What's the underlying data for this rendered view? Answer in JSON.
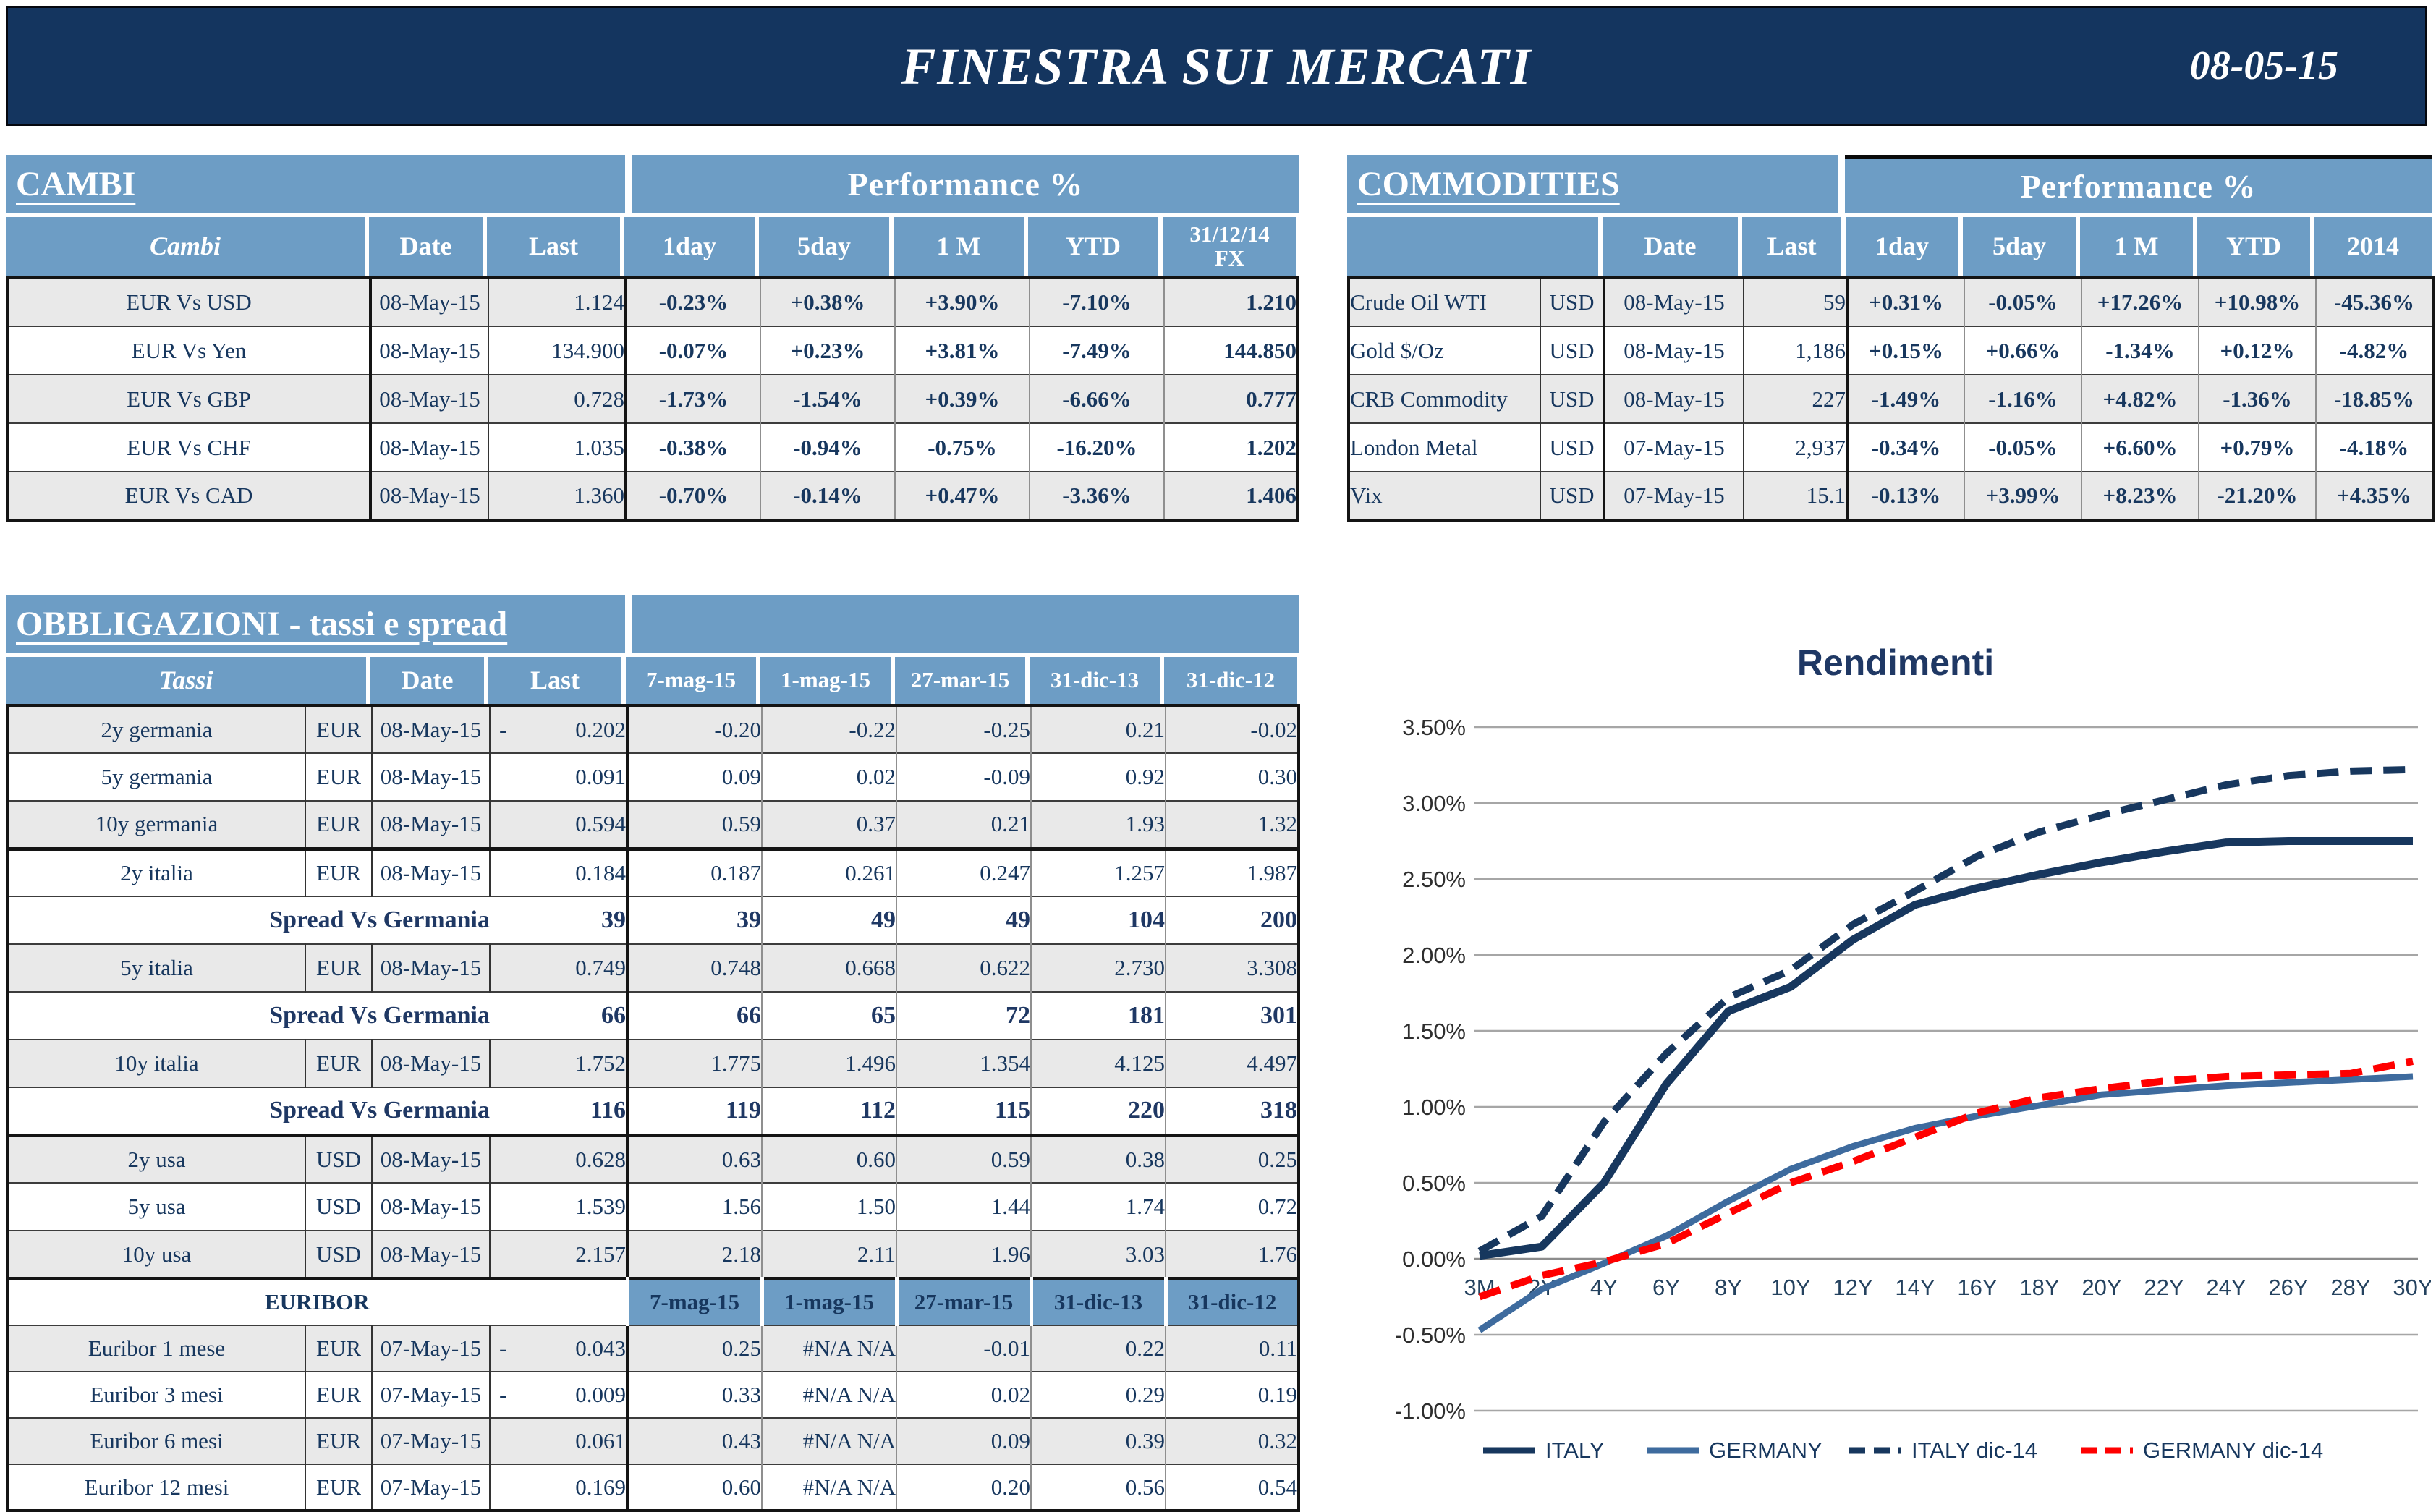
{
  "header": {
    "title": "FINESTRA SUI MERCATI",
    "date": "08-05-15"
  },
  "palette": {
    "banner_navy": "#14355F",
    "header_blue": "#6D9DC5",
    "row_gray": "#E9E9E9",
    "text_navy": "#17375E",
    "positive_green": "#00A14E",
    "negative_red": "#E60000",
    "italy_line": "#17375E",
    "germany_line": "#3E6B9E",
    "germany_dic14_line": "#FF0000",
    "grid_gray": "#A6A6A6"
  },
  "cambi": {
    "title": "CAMBI",
    "perf_title": "Performance  %",
    "col_headers": [
      "Cambi",
      "Date",
      "Last",
      "1day",
      "5day",
      "1 M",
      "YTD",
      "31/12/14\nFX"
    ],
    "rows": [
      {
        "name": "EUR Vs USD",
        "date": "08-May-15",
        "last": "1.124",
        "perf": [
          "-0.23%",
          "+0.38%",
          "+3.90%",
          "-7.10%"
        ],
        "fx": "1.210"
      },
      {
        "name": "EUR Vs Yen",
        "date": "08-May-15",
        "last": "134.900",
        "perf": [
          "-0.07%",
          "+0.23%",
          "+3.81%",
          "-7.49%"
        ],
        "fx": "144.850"
      },
      {
        "name": "EUR Vs GBP",
        "date": "08-May-15",
        "last": "0.728",
        "perf": [
          "-1.73%",
          "-1.54%",
          "+0.39%",
          "-6.66%"
        ],
        "fx": "0.777"
      },
      {
        "name": "EUR Vs CHF",
        "date": "08-May-15",
        "last": "1.035",
        "perf": [
          "-0.38%",
          "-0.94%",
          "-0.75%",
          "-16.20%"
        ],
        "fx": "1.202"
      },
      {
        "name": "EUR Vs CAD",
        "date": "08-May-15",
        "last": "1.360",
        "perf": [
          "-0.70%",
          "-0.14%",
          "+0.47%",
          "-3.36%"
        ],
        "fx": "1.406"
      }
    ]
  },
  "commodities": {
    "title": "COMMODITIES",
    "perf_title": "Performance  %",
    "col_headers": [
      "",
      "Date",
      "Last",
      "1day",
      "5day",
      "1 M",
      "YTD",
      "2014"
    ],
    "rows": [
      {
        "name": "Crude Oil WTI",
        "ccy": "USD",
        "date": "08-May-15",
        "last": "59",
        "perf": [
          "+0.31%",
          "-0.05%",
          "+17.26%",
          "+10.98%",
          "-45.36%"
        ]
      },
      {
        "name": "Gold $/Oz",
        "ccy": "USD",
        "date": "08-May-15",
        "last": "1,186",
        "perf": [
          "+0.15%",
          "+0.66%",
          "-1.34%",
          "+0.12%",
          "-4.82%"
        ]
      },
      {
        "name": "CRB Commodity",
        "ccy": "USD",
        "date": "08-May-15",
        "last": "227",
        "perf": [
          "-1.49%",
          "-1.16%",
          "+4.82%",
          "-1.36%",
          "-18.85%"
        ]
      },
      {
        "name": "London Metal",
        "ccy": "USD",
        "date": "07-May-15",
        "last": "2,937",
        "perf": [
          "-0.34%",
          "-0.05%",
          "+6.60%",
          "+0.79%",
          "-4.18%"
        ]
      },
      {
        "name": "Vix",
        "ccy": "USD",
        "date": "07-May-15",
        "last": "15.1",
        "perf": [
          "-0.13%",
          "+3.99%",
          "+8.23%",
          "-21.20%",
          "+4.35%"
        ]
      }
    ]
  },
  "obbligazioni": {
    "title": "OBBLIGAZIONI - tassi e spread",
    "col_headers": [
      "Tassi",
      "Date",
      "Last"
    ],
    "history_columns": [
      "7-mag-15",
      "1-mag-15",
      "27-mar-15",
      "31-dic-13",
      "31-dic-12"
    ],
    "rows": [
      {
        "type": "data",
        "name": "2y germania",
        "ccy": "EUR",
        "date": "08-May-15",
        "dash": "-",
        "last": "0.202",
        "values": [
          "-0.20",
          "-0.22",
          "-0.25",
          "0.21",
          "-0.02"
        ],
        "bg": "gray"
      },
      {
        "type": "data",
        "name": "5y germania",
        "ccy": "EUR",
        "date": "08-May-15",
        "dash": "",
        "last": "0.091",
        "values": [
          "0.09",
          "0.02",
          "-0.09",
          "0.92",
          "0.30"
        ],
        "bg": "white"
      },
      {
        "type": "data",
        "name": "10y germania",
        "ccy": "EUR",
        "date": "08-May-15",
        "dash": "",
        "last": "0.594",
        "values": [
          "0.59",
          "0.37",
          "0.21",
          "1.93",
          "1.32"
        ],
        "bg": "gray",
        "thick_bottom": true
      },
      {
        "type": "data",
        "name": "2y italia",
        "ccy": "EUR",
        "date": "08-May-15",
        "dash": "",
        "last": "0.184",
        "values": [
          "0.187",
          "0.261",
          "0.247",
          "1.257",
          "1.987"
        ],
        "bg": "white"
      },
      {
        "type": "spread",
        "label": "Spread Vs Germania",
        "last": "39",
        "values": [
          "39",
          "49",
          "49",
          "104",
          "200"
        ],
        "bg": "white"
      },
      {
        "type": "data",
        "name": "5y italia",
        "ccy": "EUR",
        "date": "08-May-15",
        "dash": "",
        "last": "0.749",
        "values": [
          "0.748",
          "0.668",
          "0.622",
          "2.730",
          "3.308"
        ],
        "bg": "gray"
      },
      {
        "type": "spread",
        "label": "Spread Vs Germania",
        "last": "66",
        "values": [
          "66",
          "65",
          "72",
          "181",
          "301"
        ],
        "bg": "white"
      },
      {
        "type": "data",
        "name": "10y italia",
        "ccy": "EUR",
        "date": "08-May-15",
        "dash": "",
        "last": "1.752",
        "values": [
          "1.775",
          "1.496",
          "1.354",
          "4.125",
          "4.497"
        ],
        "bg": "gray"
      },
      {
        "type": "spread",
        "label": "Spread Vs Germania",
        "last": "116",
        "values": [
          "119",
          "112",
          "115",
          "220",
          "318"
        ],
        "bg": "white",
        "thick_bottom": true
      },
      {
        "type": "data",
        "name": "2y usa",
        "ccy": "USD",
        "date": "08-May-15",
        "dash": "",
        "last": "0.628",
        "values": [
          "0.63",
          "0.60",
          "0.59",
          "0.38",
          "0.25"
        ],
        "bg": "gray"
      },
      {
        "type": "data",
        "name": "5y usa",
        "ccy": "USD",
        "date": "08-May-15",
        "dash": "",
        "last": "1.539",
        "values": [
          "1.56",
          "1.50",
          "1.44",
          "1.74",
          "0.72"
        ],
        "bg": "white"
      },
      {
        "type": "data",
        "name": "10y usa",
        "ccy": "USD",
        "date": "08-May-15",
        "dash": "",
        "last": "2.157",
        "values": [
          "2.18",
          "2.11",
          "1.96",
          "3.03",
          "1.76"
        ],
        "bg": "gray"
      }
    ],
    "euribor": {
      "label": "EURIBOR",
      "history_columns": [
        "7-mag-15",
        "1-mag-15",
        "27-mar-15",
        "31-dic-13",
        "31-dic-12"
      ],
      "rows": [
        {
          "name": "Euribor 1 mese",
          "ccy": "EUR",
          "date": "07-May-15",
          "dash": "-",
          "last": "0.043",
          "values": [
            "0.25",
            "#N/A N/A",
            "-0.01",
            "0.22",
            "0.11"
          ],
          "bg": "gray"
        },
        {
          "name": "Euribor 3 mesi",
          "ccy": "EUR",
          "date": "07-May-15",
          "dash": "-",
          "last": "0.009",
          "values": [
            "0.33",
            "#N/A N/A",
            "0.02",
            "0.29",
            "0.19"
          ],
          "bg": "white"
        },
        {
          "name": "Euribor 6 mesi",
          "ccy": "EUR",
          "date": "07-May-15",
          "dash": "",
          "last": "0.061",
          "values": [
            "0.43",
            "#N/A N/A",
            "0.09",
            "0.39",
            "0.32"
          ],
          "bg": "gray"
        },
        {
          "name": "Euribor 12 mesi",
          "ccy": "EUR",
          "date": "07-May-15",
          "dash": "",
          "last": "0.169",
          "values": [
            "0.60",
            "#N/A N/A",
            "0.20",
            "0.56",
            "0.54"
          ],
          "bg": "white"
        }
      ]
    }
  },
  "chart_data": {
    "type": "line",
    "title": "Rendimenti",
    "categories": [
      "3M",
      "2Y",
      "4Y",
      "6Y",
      "8Y",
      "10Y",
      "12Y",
      "14Y",
      "16Y",
      "18Y",
      "20Y",
      "22Y",
      "24Y",
      "26Y",
      "28Y",
      "30Y"
    ],
    "series": [
      {
        "name": "ITALY",
        "style": "solid",
        "color": "#17375E",
        "values": [
          0.02,
          0.08,
          0.5,
          1.15,
          1.63,
          1.79,
          2.1,
          2.33,
          2.44,
          2.53,
          2.61,
          2.68,
          2.74,
          2.75,
          2.75,
          2.75
        ]
      },
      {
        "name": "GERMANY",
        "style": "solid",
        "color": "#3E6B9E",
        "values": [
          -0.47,
          -0.2,
          -0.03,
          0.15,
          0.38,
          0.59,
          0.74,
          0.86,
          0.94,
          1.01,
          1.08,
          1.11,
          1.14,
          1.16,
          1.18,
          1.2
        ]
      },
      {
        "name": "ITALY dic-14",
        "style": "dashed",
        "color": "#17375E",
        "values": [
          0.05,
          0.28,
          0.9,
          1.35,
          1.72,
          1.9,
          2.2,
          2.42,
          2.65,
          2.81,
          2.92,
          3.02,
          3.12,
          3.18,
          3.21,
          3.22
        ]
      },
      {
        "name": "GERMANY dic-14",
        "style": "dashed",
        "color": "#FF0000",
        "values": [
          -0.25,
          -0.11,
          -0.02,
          0.1,
          0.3,
          0.5,
          0.64,
          0.8,
          0.96,
          1.06,
          1.12,
          1.17,
          1.2,
          1.21,
          1.22,
          1.3
        ]
      }
    ],
    "ylim": [
      -1.0,
      3.5
    ],
    "ytick_step": 0.5,
    "yticks": [
      "3.50%",
      "3.00%",
      "2.50%",
      "2.00%",
      "1.50%",
      "1.00%",
      "0.50%",
      "0.00%",
      "-0.50%",
      "-1.00%"
    ],
    "grid": true,
    "legend_position": "bottom"
  }
}
